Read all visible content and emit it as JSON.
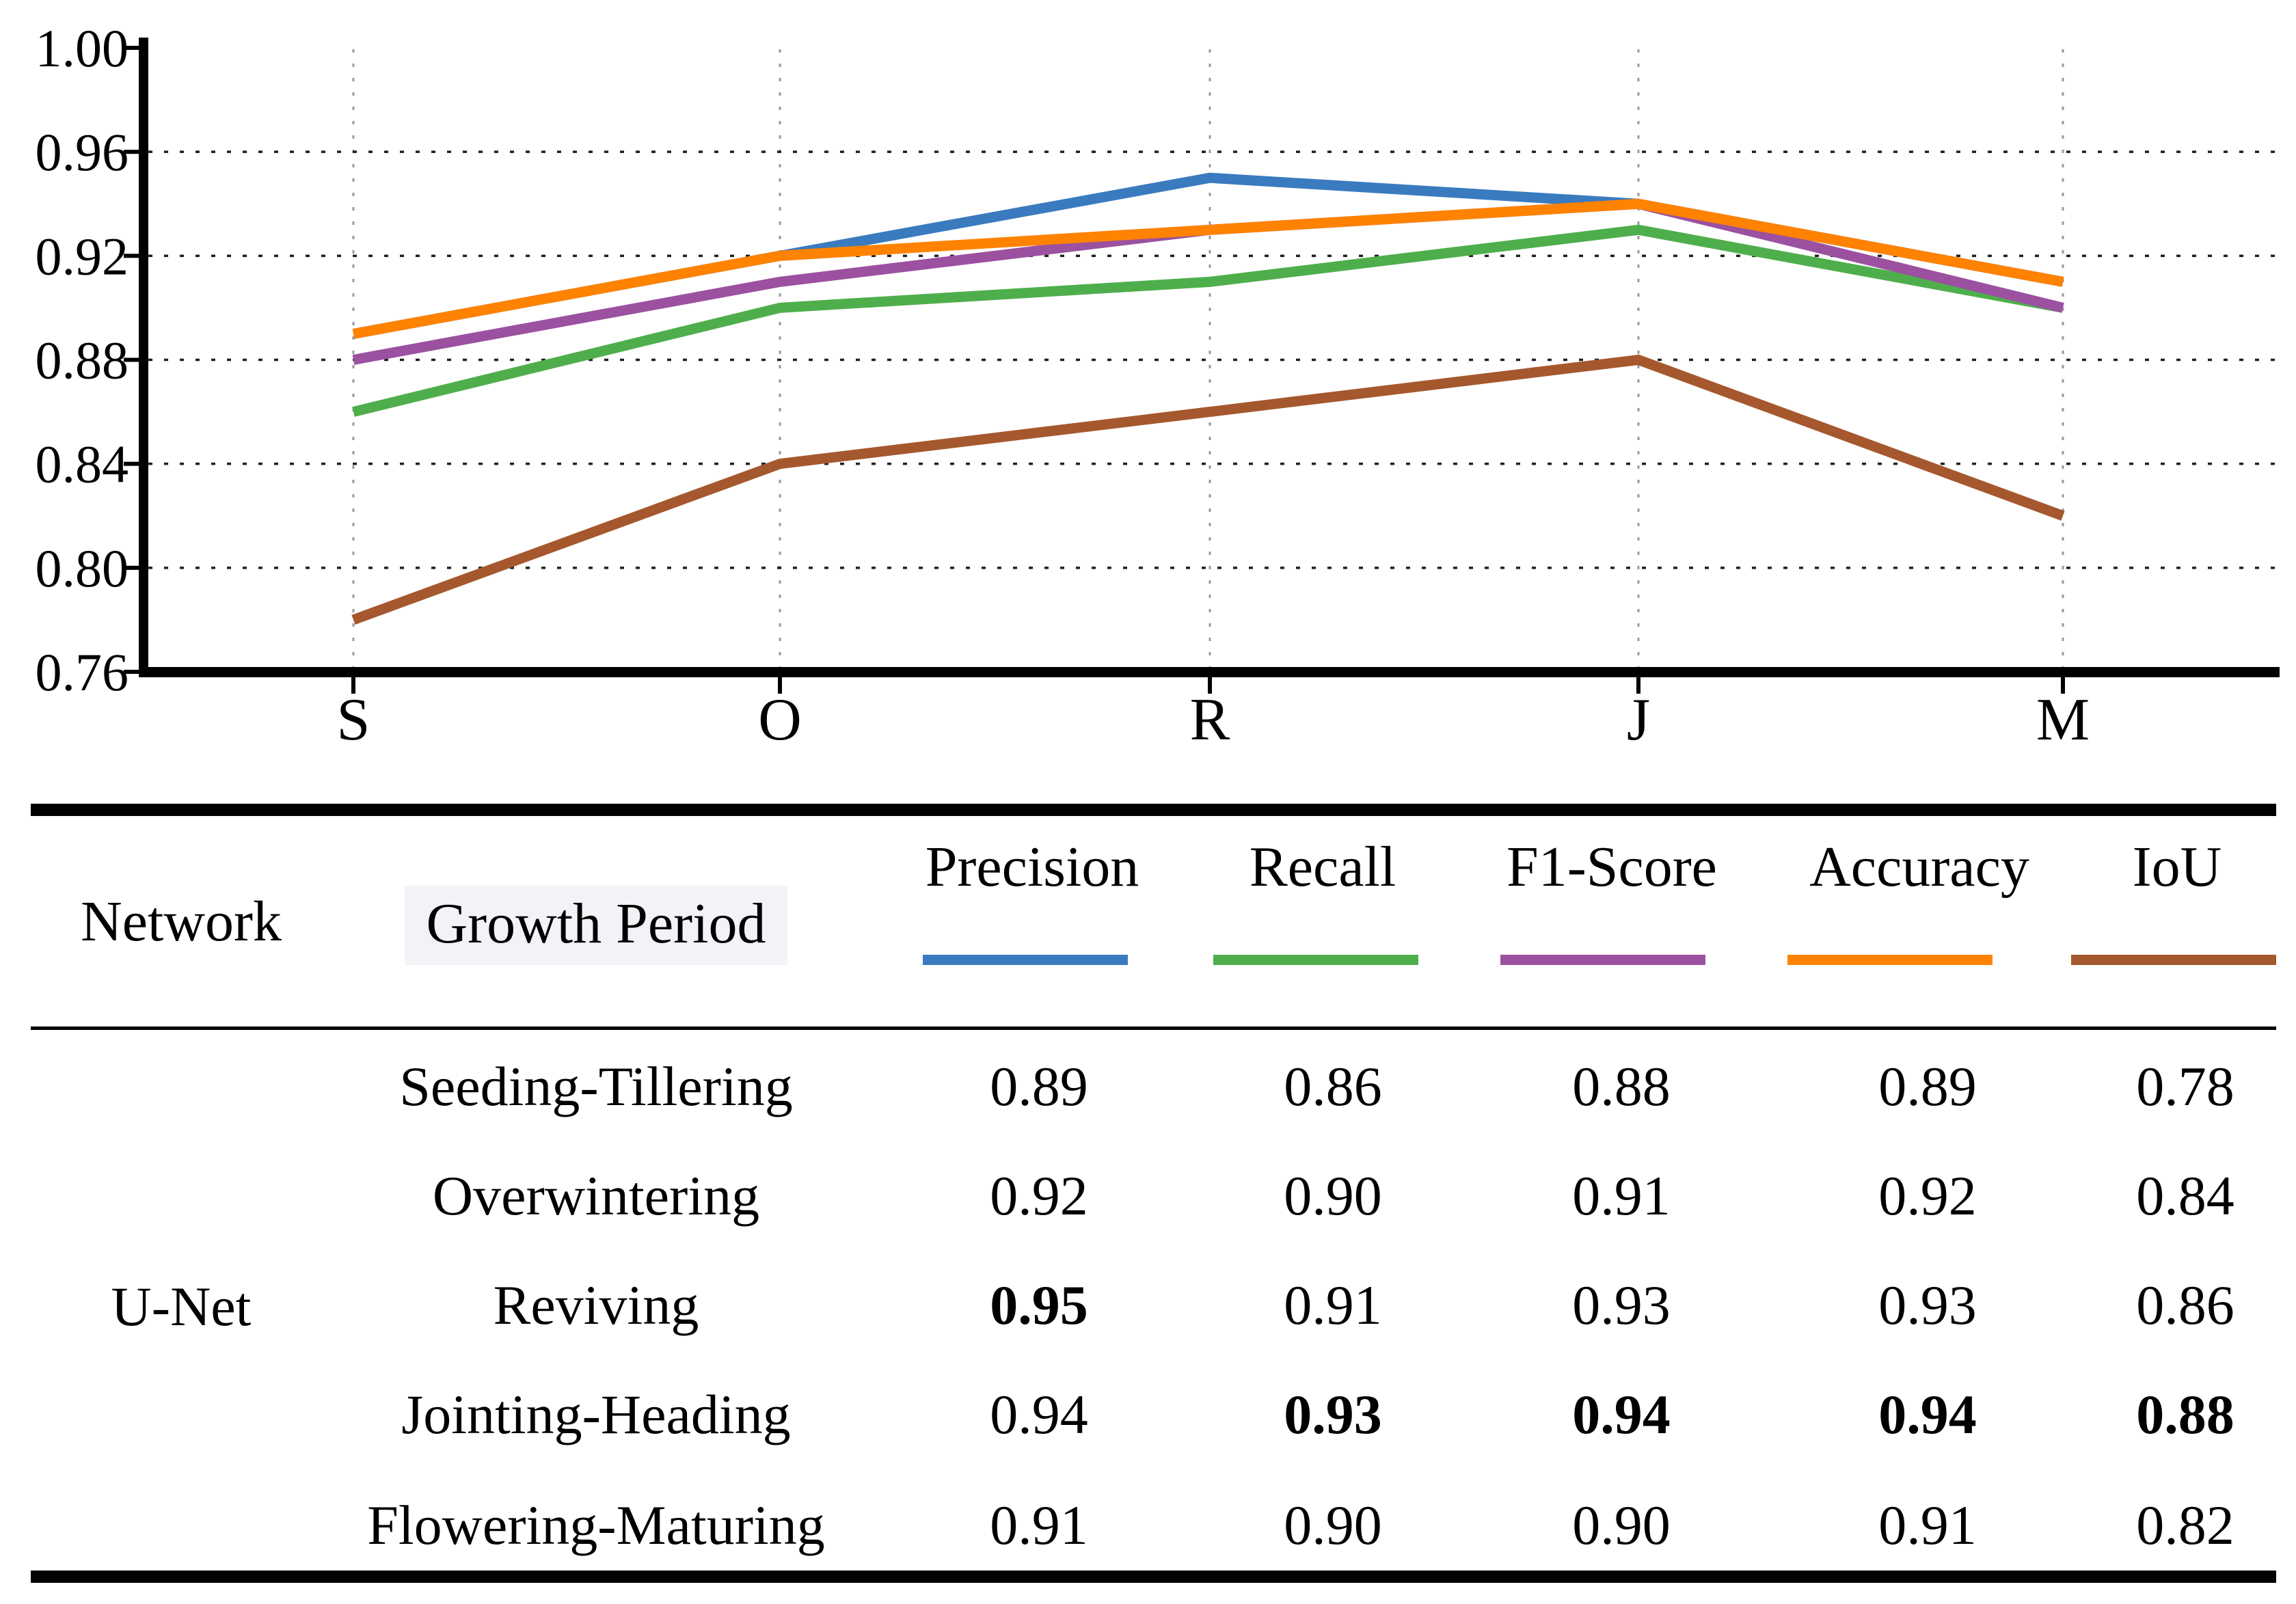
{
  "chart_data": {
    "type": "line",
    "x_categories": [
      "S",
      "O",
      "R",
      "J",
      "M"
    ],
    "ytick_labels": [
      "1.00",
      "0.96",
      "0.92",
      "0.88",
      "0.84",
      "0.80",
      "0.76"
    ],
    "ylim": [
      0.76,
      1.0
    ],
    "grid": {
      "horizontal_values": [
        0.96,
        0.92,
        0.88,
        0.84,
        0.8
      ],
      "vertical_at_categories": true,
      "horizontal_color": "#1f1f1f",
      "vertical_color": "#9a9a9a"
    },
    "legend_position": "table-header",
    "series": [
      {
        "name": "Precision",
        "color": "#3a7bbf",
        "values": [
          0.89,
          0.92,
          0.95,
          0.94,
          0.91
        ]
      },
      {
        "name": "Recall",
        "color": "#4fae4c",
        "values": [
          0.86,
          0.9,
          0.91,
          0.93,
          0.9
        ]
      },
      {
        "name": "F1-Score",
        "color": "#9b51a0",
        "values": [
          0.88,
          0.91,
          0.93,
          0.94,
          0.9
        ]
      },
      {
        "name": "Accuracy",
        "color": "#ff8200",
        "values": [
          0.89,
          0.92,
          0.93,
          0.94,
          0.91
        ]
      },
      {
        "name": "IoU",
        "color": "#a5582e",
        "values": [
          0.78,
          0.84,
          0.86,
          0.88,
          0.82
        ]
      }
    ]
  },
  "table": {
    "network_header": "Network",
    "growth_header": "Growth Period",
    "metric_headers": [
      "Precision",
      "Recall",
      "F1-Score",
      "Accuracy",
      "IoU"
    ],
    "network_value": "U-Net",
    "rows": [
      {
        "growth_period": "Seeding-Tillering",
        "values": [
          "0.89",
          "0.86",
          "0.88",
          "0.89",
          "0.78"
        ],
        "bold": [
          false,
          false,
          false,
          false,
          false
        ]
      },
      {
        "growth_period": "Overwintering",
        "values": [
          "0.92",
          "0.90",
          "0.91",
          "0.92",
          "0.84"
        ],
        "bold": [
          false,
          false,
          false,
          false,
          false
        ]
      },
      {
        "growth_period": "Reviving",
        "values": [
          "0.95",
          "0.91",
          "0.93",
          "0.93",
          "0.86"
        ],
        "bold": [
          true,
          false,
          false,
          false,
          false
        ]
      },
      {
        "growth_period": "Jointing-Heading",
        "values": [
          "0.94",
          "0.93",
          "0.94",
          "0.94",
          "0.88"
        ],
        "bold": [
          false,
          true,
          true,
          true,
          true
        ]
      },
      {
        "growth_period": "Flowering-Maturing",
        "values": [
          "0.91",
          "0.90",
          "0.90",
          "0.91",
          "0.82"
        ],
        "bold": [
          false,
          false,
          false,
          false,
          false
        ]
      }
    ]
  }
}
